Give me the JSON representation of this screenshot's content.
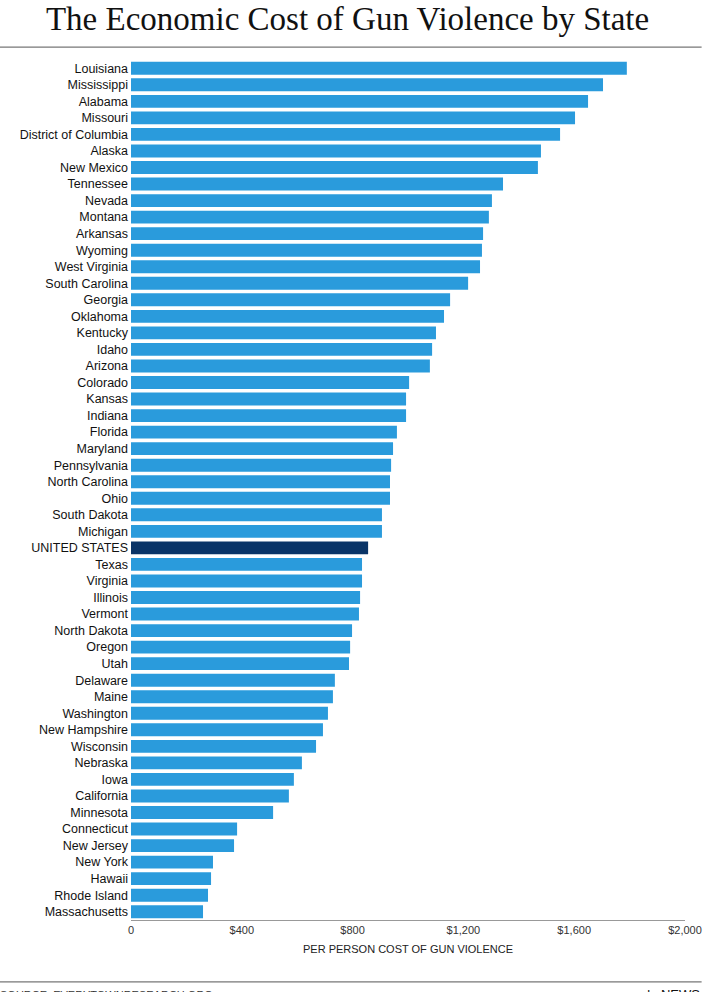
{
  "chart_data": {
    "type": "bar",
    "orientation": "horizontal",
    "title": "The Economic Cost of Gun Violence by State",
    "x_label": "PER PERSON COST OF GUN VIOLENCE",
    "source": "SOURCE: EVERYTOWNRESEARCH.ORG",
    "logo": "abcNEWS",
    "categories": [
      "Louisiana",
      "Mississippi",
      "Alabama",
      "Missouri",
      "District of Columbia",
      "Alaska",
      "New Mexico",
      "Tennessee",
      "Nevada",
      "Montana",
      "Arkansas",
      "Wyoming",
      "West Virginia",
      "South Carolina",
      "Georgia",
      "Oklahoma",
      "Kentucky",
      "Idaho",
      "Arizona",
      "Colorado",
      "Kansas",
      "Indiana",
      "Florida",
      "Maryland",
      "Pennsylvania",
      "North Carolina",
      "Ohio",
      "South Dakota",
      "Michigan",
      "UNITED STATES",
      "Texas",
      "Virginia",
      "Illinois",
      "Vermont",
      "North Dakota",
      "Oregon",
      "Utah",
      "Delaware",
      "Maine",
      "Washington",
      "New Hampshire",
      "Wisconsin",
      "Nebraska",
      "Iowa",
      "California",
      "Minnesota",
      "Connecticut",
      "New Jersey",
      "New York",
      "Hawaii",
      "Rhode Island",
      "Massachusetts"
    ],
    "values": [
      1790,
      1704,
      1650,
      1603,
      1549,
      1480,
      1469,
      1343,
      1303,
      1292,
      1271,
      1267,
      1260,
      1217,
      1152,
      1130,
      1101,
      1087,
      1079,
      1004,
      993,
      993,
      960,
      946,
      939,
      935,
      935,
      906,
      906,
      856,
      834,
      834,
      827,
      823,
      798,
      791,
      787,
      736,
      729,
      711,
      693,
      668,
      617,
      588,
      570,
      513,
      383,
      372,
      296,
      289,
      278,
      260
    ],
    "colors": [
      "#2a9bdc",
      "#2a9bdc",
      "#2a9bdc",
      "#2a9bdc",
      "#2a9bdc",
      "#2a9bdc",
      "#2a9bdc",
      "#2a9bdc",
      "#2a9bdc",
      "#2a9bdc",
      "#2a9bdc",
      "#2a9bdc",
      "#2a9bdc",
      "#2a9bdc",
      "#2a9bdc",
      "#2a9bdc",
      "#2a9bdc",
      "#2a9bdc",
      "#2a9bdc",
      "#2a9bdc",
      "#2a9bdc",
      "#2a9bdc",
      "#2a9bdc",
      "#2a9bdc",
      "#2a9bdc",
      "#2a9bdc",
      "#2a9bdc",
      "#2a9bdc",
      "#2a9bdc",
      "#0a3467",
      "#2a9bdc",
      "#2a9bdc",
      "#2a9bdc",
      "#2a9bdc",
      "#2a9bdc",
      "#2a9bdc",
      "#2a9bdc",
      "#2a9bdc",
      "#2a9bdc",
      "#2a9bdc",
      "#2a9bdc",
      "#2a9bdc",
      "#2a9bdc",
      "#2a9bdc",
      "#2a9bdc",
      "#2a9bdc",
      "#2a9bdc",
      "#2a9bdc",
      "#2a9bdc",
      "#2a9bdc",
      "#2a9bdc",
      "#2a9bdc"
    ],
    "xlim": [
      0,
      2000
    ],
    "xticks": [
      0,
      {
        "value": 400,
        "label": "$400"
      },
      {
        "value": 800,
        "label": "$800"
      },
      {
        "value": 1200,
        "label": "$1,200"
      },
      {
        "value": 1600,
        "label": "$1,600"
      },
      {
        "value": 2000,
        "label": "$2,000"
      }
    ],
    "grid": false,
    "data_labels": false
  }
}
